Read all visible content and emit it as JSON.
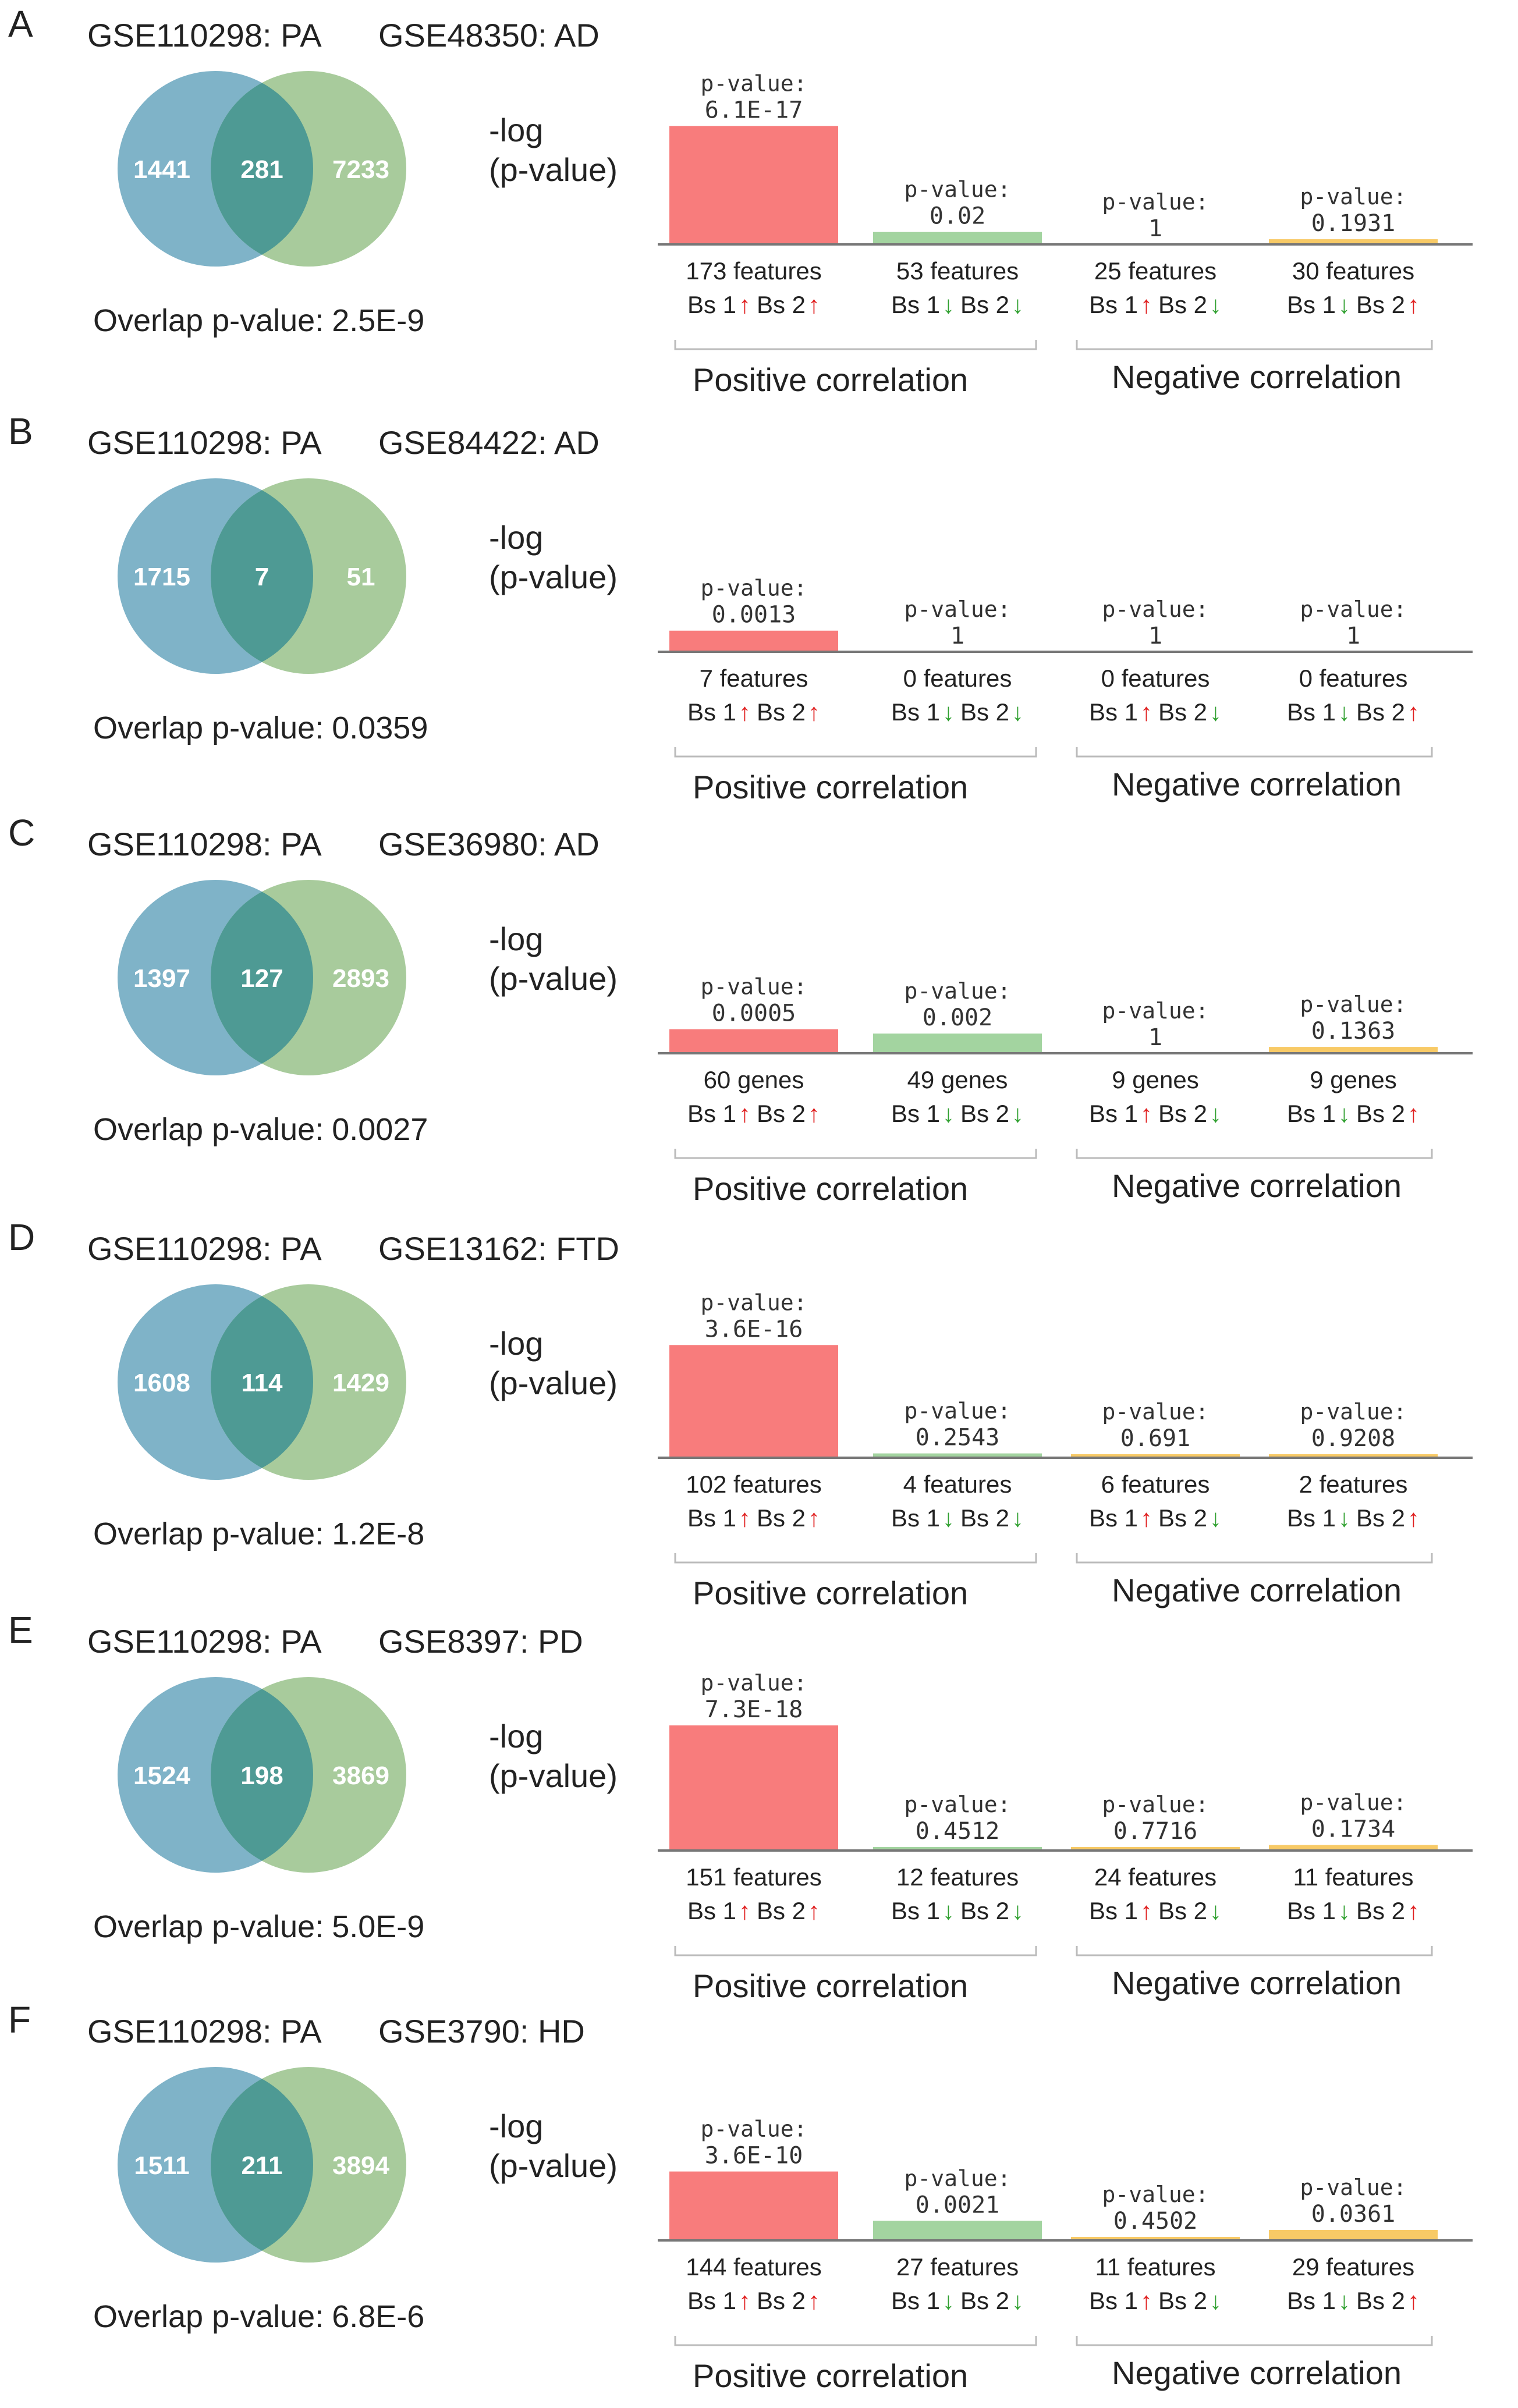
{
  "colors": {
    "venn_left": "#7FB3C8",
    "venn_right": "#A8CB9C",
    "venn_overlap": "#4E9A94",
    "bar_pos_up": "#F87C7C",
    "bar_pos_down": "#A3D4A0",
    "bar_neg": "#F8CA66",
    "arrow_up": "#E02020",
    "arrow_down": "#30A030",
    "axis": "#777777",
    "bracket": "#BBBBBB"
  },
  "common": {
    "ylabel_line1": "-log",
    "ylabel_line2": "(p-value)",
    "overlap_label": "Overlap  p-value:",
    "pvalue_label": "p-value:",
    "bs1": "Bs 1",
    "bs2": "Bs 2",
    "positive_correlation": "Positive correlation",
    "negative_correlation": "Negative correlation",
    "arrow_up_glyph": "↑",
    "arrow_down_glyph": "↓"
  },
  "panels": [
    {
      "letter": "A",
      "left_dataset": "GSE110298: PA",
      "right_dataset": "GSE48350: AD",
      "venn": {
        "left_only": "1441",
        "overlap": "281",
        "right_only": "7233"
      },
      "overlap_pvalue": "2.5E-9"
    },
    {
      "letter": "B",
      "left_dataset": "GSE110298: PA",
      "right_dataset": "GSE84422: AD",
      "venn": {
        "left_only": "1715",
        "overlap": "7",
        "right_only": "51"
      },
      "overlap_pvalue": "0.0359"
    },
    {
      "letter": "C",
      "left_dataset": "GSE110298: PA",
      "right_dataset": "GSE36980: AD",
      "venn": {
        "left_only": "1397",
        "overlap": "127",
        "right_only": "2893"
      },
      "overlap_pvalue": "0.0027"
    },
    {
      "letter": "D",
      "left_dataset": "GSE110298: PA",
      "right_dataset": "GSE13162: FTD",
      "venn": {
        "left_only": "1608",
        "overlap": "114",
        "right_only": "1429"
      },
      "overlap_pvalue": "1.2E-8"
    },
    {
      "letter": "E",
      "left_dataset": "GSE110298: PA",
      "right_dataset": "GSE8397: PD",
      "venn": {
        "left_only": "1524",
        "overlap": "198",
        "right_only": "3869"
      },
      "overlap_pvalue": "5.0E-9"
    },
    {
      "letter": "F",
      "left_dataset": "GSE110298: PA",
      "right_dataset": "GSE3790: HD",
      "venn": {
        "left_only": "1511",
        "overlap": "211",
        "right_only": "3894"
      },
      "overlap_pvalue": "6.8E-6"
    }
  ],
  "chart_data": [
    {
      "type": "bar",
      "panel": "A",
      "ylabel": "-log (p-value)",
      "categories": [
        "Bs 1↑ Bs 2↑",
        "Bs 1↓ Bs 2↓",
        "Bs 1↑ Bs 2↓",
        "Bs 1↓ Bs 2↑"
      ],
      "pvalues": [
        "6.1E-17",
        "0.02",
        "1",
        "0.1931"
      ],
      "values": [
        16.21,
        1.7,
        0.0,
        0.71
      ],
      "counts": [
        "173 features",
        "53 features",
        "25 features",
        "30 features"
      ],
      "groups": [
        "Positive correlation",
        "Negative correlation"
      ]
    },
    {
      "type": "bar",
      "panel": "B",
      "ylabel": "-log (p-value)",
      "categories": [
        "Bs 1↑ Bs 2↑",
        "Bs 1↓ Bs 2↓",
        "Bs 1↑ Bs 2↓",
        "Bs 1↓ Bs 2↑"
      ],
      "pvalues": [
        "0.0013",
        "1",
        "1",
        "1"
      ],
      "values": [
        2.89,
        0.0,
        0.0,
        0.0
      ],
      "counts": [
        "7 features",
        "0 features",
        "0 features",
        "0 features"
      ],
      "groups": [
        "Positive correlation",
        "Negative correlation"
      ]
    },
    {
      "type": "bar",
      "panel": "C",
      "ylabel": "-log (p-value)",
      "categories": [
        "Bs 1↑ Bs 2↑",
        "Bs 1↓ Bs 2↓",
        "Bs 1↑ Bs 2↓",
        "Bs 1↓ Bs 2↑"
      ],
      "pvalues": [
        "0.0005",
        "0.002",
        "1",
        "0.1363"
      ],
      "values": [
        3.3,
        2.7,
        0.0,
        0.87
      ],
      "counts": [
        "60 genes",
        "49 genes",
        "9 genes",
        "9 genes"
      ],
      "groups": [
        "Positive correlation",
        "Negative correlation"
      ]
    },
    {
      "type": "bar",
      "panel": "D",
      "ylabel": "-log (p-value)",
      "categories": [
        "Bs 1↑ Bs 2↑",
        "Bs 1↓ Bs 2↓",
        "Bs 1↑ Bs 2↓",
        "Bs 1↓ Bs 2↑"
      ],
      "pvalues": [
        "3.6E-16",
        "0.2543",
        "0.691",
        "0.9208"
      ],
      "values": [
        15.44,
        0.59,
        0.16,
        0.04
      ],
      "counts": [
        "102 features",
        "4 features",
        "6 features",
        "2 features"
      ],
      "groups": [
        "Positive correlation",
        "Negative correlation"
      ]
    },
    {
      "type": "bar",
      "panel": "E",
      "ylabel": "-log (p-value)",
      "categories": [
        "Bs 1↑ Bs 2↑",
        "Bs 1↓ Bs 2↓",
        "Bs 1↑ Bs 2↓",
        "Bs 1↓ Bs 2↑"
      ],
      "pvalues": [
        "7.3E-18",
        "0.4512",
        "0.7716",
        "0.1734"
      ],
      "values": [
        17.14,
        0.35,
        0.11,
        0.76
      ],
      "counts": [
        "151 features",
        "12 features",
        "24 features",
        "11 features"
      ],
      "groups": [
        "Positive correlation",
        "Negative correlation"
      ]
    },
    {
      "type": "bar",
      "panel": "F",
      "ylabel": "-log (p-value)",
      "categories": [
        "Bs 1↑ Bs 2↑",
        "Bs 1↓ Bs 2↓",
        "Bs 1↑ Bs 2↓",
        "Bs 1↓ Bs 2↑"
      ],
      "pvalues": [
        "3.6E-10",
        "0.0021",
        "0.4502",
        "0.0361"
      ],
      "values": [
        9.44,
        2.68,
        0.35,
        1.44
      ],
      "counts": [
        "144 features",
        "27 features",
        "11 features",
        "29 features"
      ],
      "groups": [
        "Positive correlation",
        "Negative correlation"
      ]
    }
  ]
}
